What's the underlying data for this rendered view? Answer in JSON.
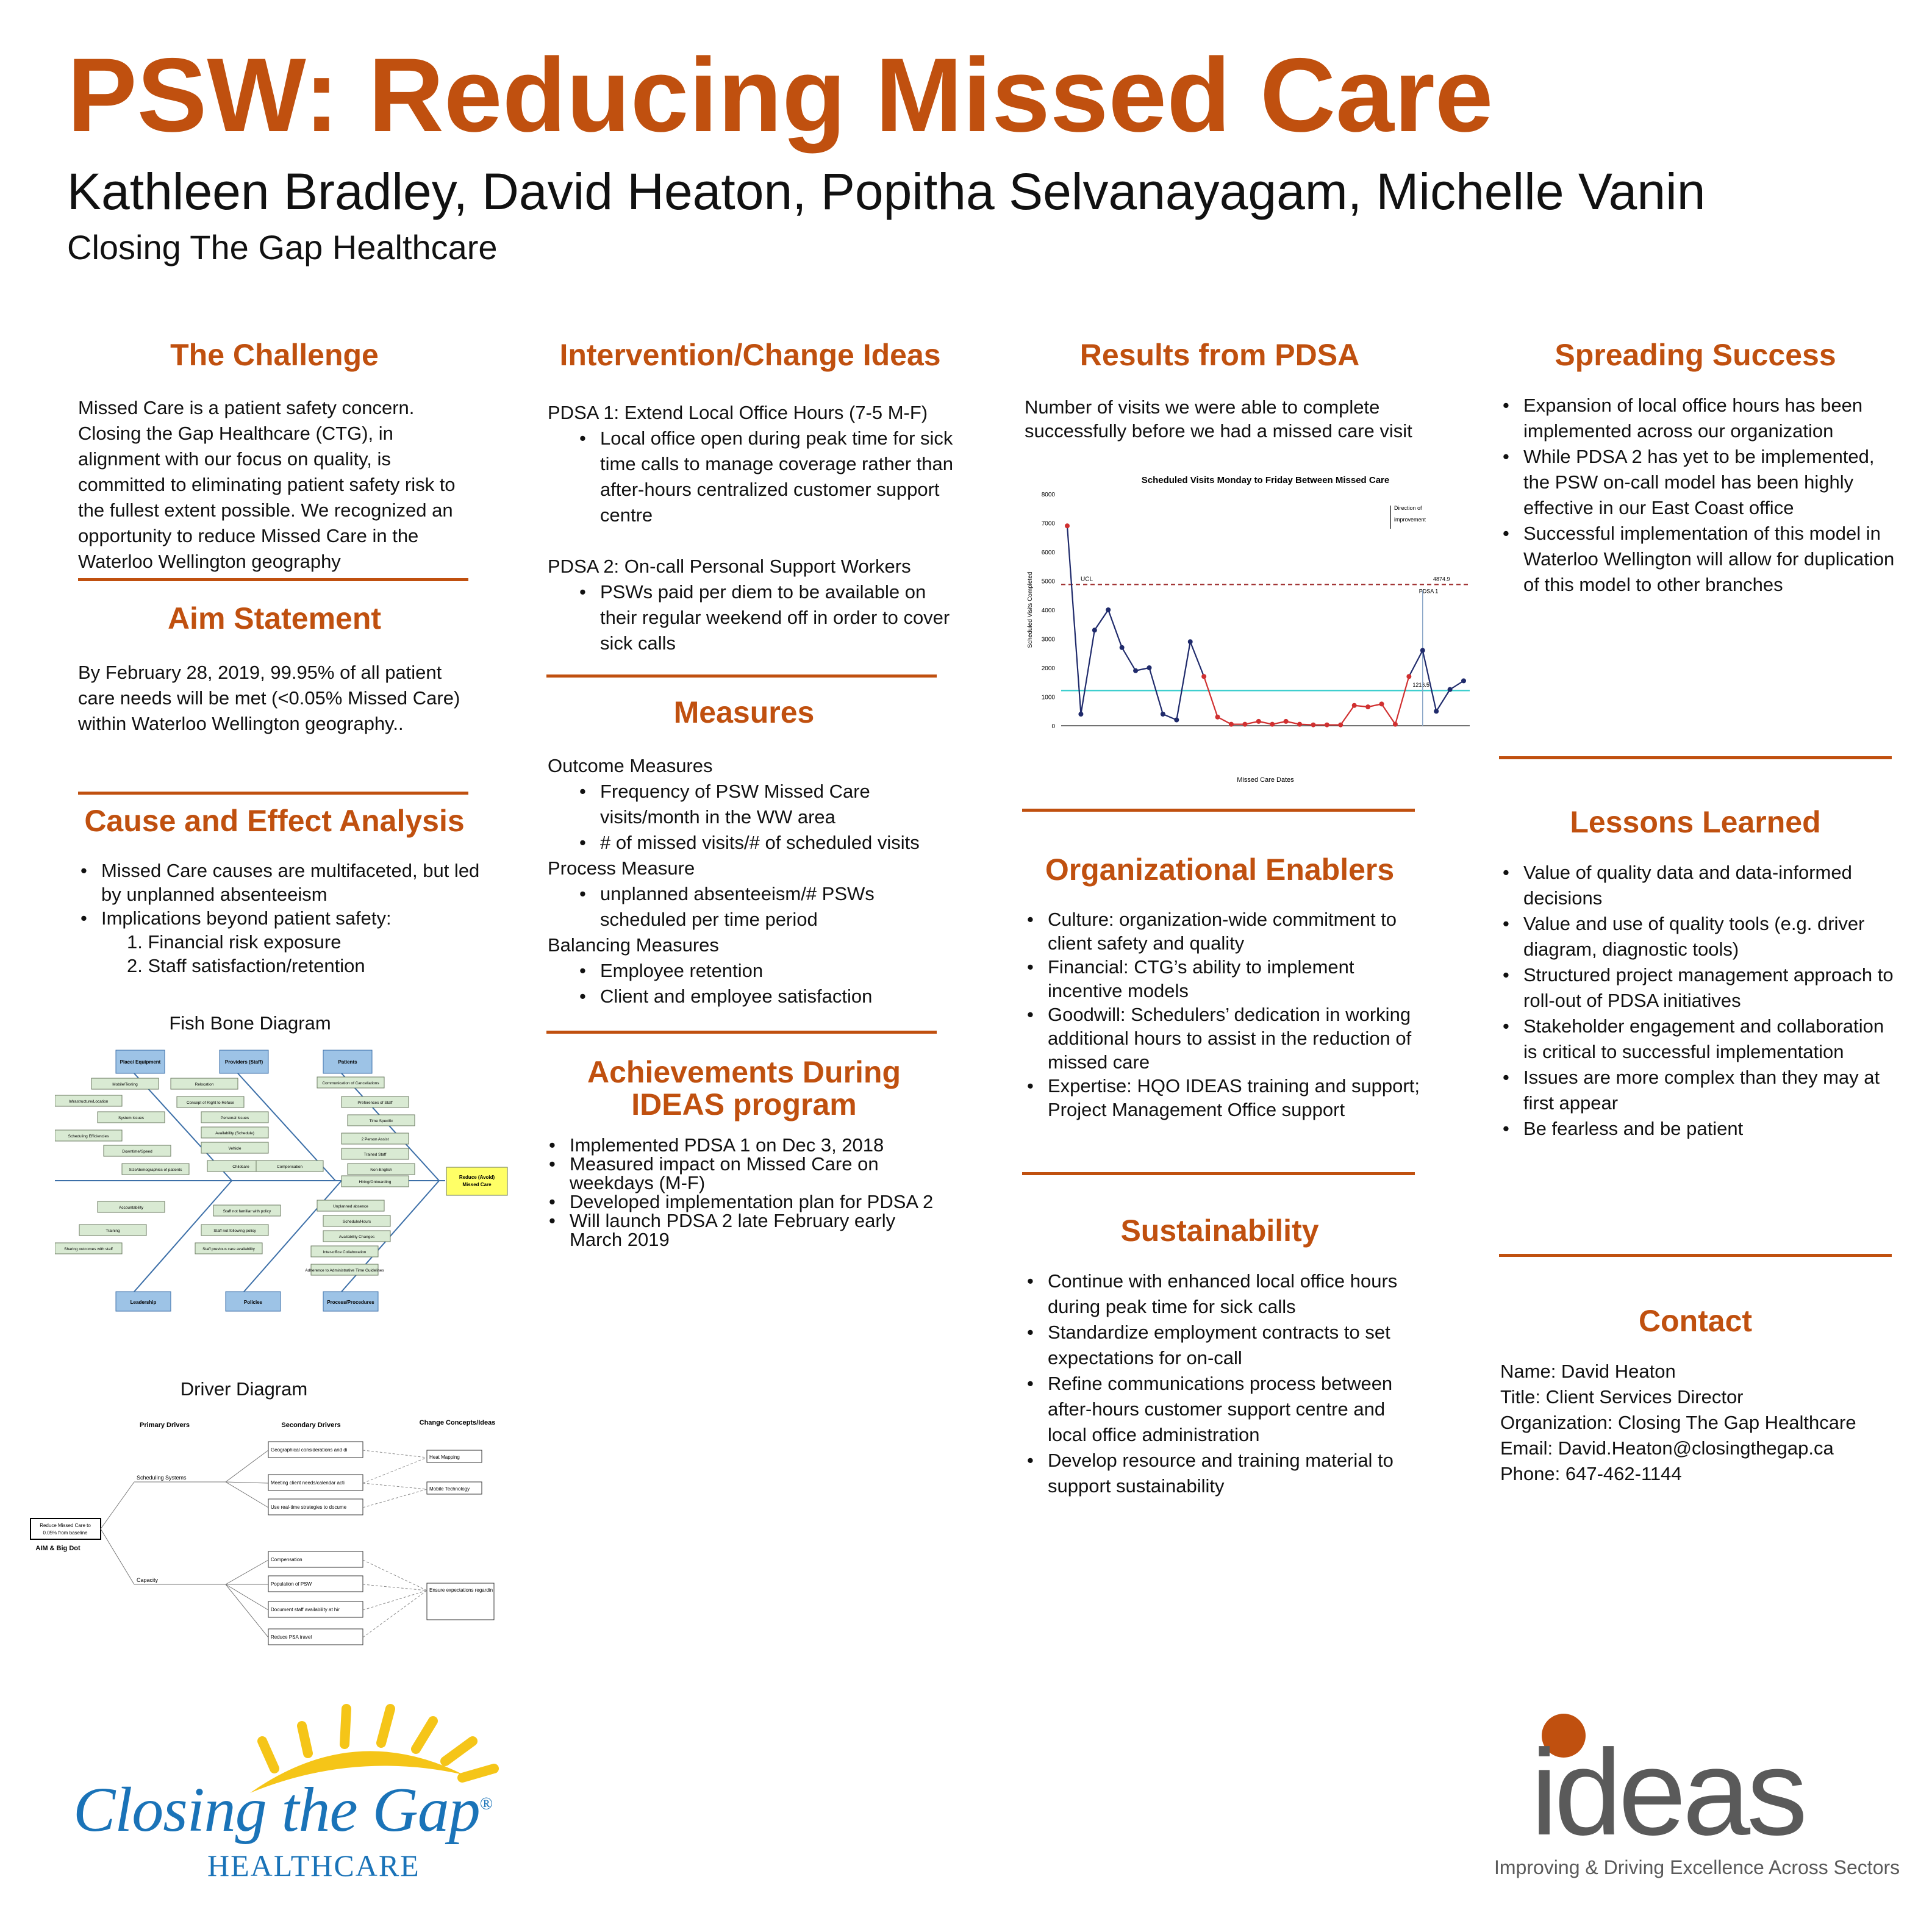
{
  "header": {
    "title": "PSW: Reducing Missed Care",
    "authors": "Kathleen Bradley, David Heaton, Popitha Selvanayagam, Michelle Vanin",
    "organization": "Closing The Gap Healthcare"
  },
  "challenge": {
    "heading": "The Challenge",
    "text": "Missed Care is a patient safety concern. Closing the Gap Healthcare (CTG), in alignment with our focus on quality, is committed to eliminating patient safety risk to the fullest extent possible. We recognized an opportunity to reduce Missed Care in the Waterloo Wellington geography"
  },
  "aim": {
    "heading": "Aim Statement",
    "text": "By February 28, 2019, 99.95% of all patient care needs will be met (<0.05% Missed Care) within Waterloo Wellington geography.."
  },
  "cause_effect": {
    "heading": "Cause and Effect Analysis",
    "bullets": [
      "Missed Care causes are multifaceted, but led by unplanned absenteeism",
      "Implications beyond patient safety:"
    ],
    "numbered": [
      "1.  Financial risk exposure",
      "2.  Staff satisfaction/retention"
    ],
    "fishbone_caption": "Fish Bone Diagram",
    "driver_caption": "Driver Diagram"
  },
  "fishbone": {
    "top_categories": [
      "Place/ Equipment",
      "Providers (Staff)",
      "Patients"
    ],
    "bottom_categories": [
      "Leadership",
      "Policies",
      "Process/Procedures"
    ],
    "effect": "Reduce (Avoid) Missed Care",
    "causes": [
      "Mobile/Texting",
      "Infrastructure/Location",
      "System issues",
      "Scheduling Efficiencies",
      "Downtime/Speed",
      "Size/demographics of patients",
      "Relocation",
      "Concept of Right to Refuse",
      "Personal Issues",
      "Availability (Schedule)",
      "Vehicle",
      "Childcare",
      "Communication of Cancellations",
      "Preferences of Staff",
      "Time Specific",
      "2 Person Assist",
      "Trained Staff",
      "Non-English",
      "Hiring/Onboarding",
      "Compensation",
      "Staff not familiar with policy",
      "Staff not following policy",
      "Staff previous care availability",
      "Accountability",
      "Training",
      "Sharing outcomes with staff",
      "Unplanned absence",
      "Schedule/Hours",
      "Availability Changes",
      "Inter-office Collaboration",
      "Adherence to Administrative Time Guidelines"
    ]
  },
  "driver": {
    "col_primary": "Primary Drivers",
    "col_secondary": "Secondary Drivers",
    "col_change": "Change Concepts/Ideas",
    "aim_box": "Reduce Missed Care to 0.05% from baseline",
    "aim_label": "AIM & Big Dot",
    "primary": [
      "Scheduling Systems",
      "Capacity"
    ],
    "secondary": [
      "Geographical considerations and distance to travel",
      "Meeting client needs/calendar active",
      "Use real-time strategies to document availability",
      "Compensation",
      "Population of PSW",
      "Document staff availability at hiring",
      "Reduce PSA travel"
    ],
    "change": [
      "Heat Mapping",
      "Mobile Technology",
      "Ensure expectations regarding on-call are to meet operational needs. Ex. To travel within catchment area"
    ]
  },
  "intervention": {
    "heading": "Intervention/Change Ideas",
    "pdsa1_title": "PDSA  1: Extend Local Office Hours (7-5 M-F)",
    "pdsa1_bullets": [
      "Local office open during peak time for sick time calls to manage coverage rather than after-hours centralized customer support centre"
    ],
    "pdsa2_title": "PDSA  2:  On-call Personal Support  Workers",
    "pdsa2_bullets": [
      "PSWs paid per diem to be available on their regular weekend off in order to cover sick calls"
    ]
  },
  "measures": {
    "heading": "Measures",
    "outcome_title": "Outcome Measures",
    "outcome": [
      "Frequency of PSW Missed Care visits/month in the WW area",
      "# of missed visits/# of scheduled visits"
    ],
    "process_title": "Process Measure",
    "process": [
      "unplanned absenteeism/# PSWs scheduled per time period"
    ],
    "balancing_title": "Balancing Measures",
    "balancing": [
      "Employee retention",
      "Client and employee satisfaction"
    ]
  },
  "achievements": {
    "heading_line1": "Achievements During",
    "heading_line2": "IDEAS program",
    "bullets": [
      "Implemented PDSA 1 on Dec 3, 2018",
      "Measured impact on Missed Care on weekdays (M-F)",
      "Developed implementation plan for PDSA 2",
      "Will launch PDSA 2 late February early March 2019"
    ]
  },
  "results": {
    "heading": "Results from PDSA",
    "text": "Number of visits we were able to complete successfully before we had a missed care visit"
  },
  "chart_data": {
    "type": "line",
    "title": "Scheduled Visits Monday to Friday Between Missed Care",
    "xlabel": "Missed Care Dates",
    "ylabel": "Scheduled Visits Completed",
    "ylim": [
      0,
      8000
    ],
    "yticks": [
      0,
      1000,
      2000,
      3000,
      4000,
      5000,
      6000,
      7000,
      8000
    ],
    "ucl": 4874.9,
    "ucl_label": "UCL",
    "ucl_value_label": "4874.9",
    "mean": 1216.5,
    "mean_label": "1216.5",
    "pdsa_label": "PDSA 1",
    "direction_label": "Direction of improvement",
    "series": [
      {
        "color": "#1f2a6b",
        "values": [
          6900,
          400,
          3300,
          4000,
          2700,
          1900,
          2000,
          400,
          200,
          2900,
          1700,
          300,
          50,
          50,
          150,
          50,
          150,
          50,
          30,
          30,
          30,
          700,
          650,
          750,
          50,
          1700,
          2600,
          500,
          1250,
          1550
        ]
      }
    ],
    "out_of_control_points": [
      0,
      10,
      11,
      12,
      13,
      14,
      15,
      16,
      17,
      18,
      19,
      20,
      21,
      22,
      23,
      24,
      25
    ]
  },
  "enablers": {
    "heading": "Organizational Enablers",
    "bullets": [
      "Culture: organization-wide commitment to client safety and quality",
      "Financial:  CTG’s ability to implement incentive models",
      "Goodwill:  Schedulers’ dedication in working additional hours to assist in the reduction of missed care",
      "Expertise: HQO IDEAS training and support; Project Management Office support"
    ]
  },
  "sustainability": {
    "heading": "Sustainability",
    "bullets": [
      "Continue with enhanced local office hours during peak time for sick calls",
      "Standardize employment contracts to set expectations for on-call",
      "Refine communications process between after-hours customer support centre and local office administration",
      "Develop resource and training material to support sustainability"
    ]
  },
  "spreading": {
    "heading": "Spreading Success",
    "bullets": [
      "Expansion of local office hours has been implemented across our organization",
      "While PDSA 2 has yet to be implemented, the PSW on-call model has been highly effective in our East Coast office",
      "Successful implementation of this model in Waterloo Wellington will allow for duplication of this model to other branches"
    ]
  },
  "lessons": {
    "heading": "Lessons Learned",
    "bullets": [
      "Value of quality data and data-informed decisions",
      "Value and use of quality tools (e.g. driver diagram, diagnostic tools)",
      "Structured project management approach to roll-out of PDSA initiatives",
      "Stakeholder engagement and collaboration is critical to successful implementation",
      "Issues are more complex than they may at first appear",
      "Be fearless and be patient"
    ]
  },
  "contact": {
    "heading": "Contact",
    "name": "Name: David Heaton",
    "title": "Title: Client Services Director",
    "organization": "Organization: Closing The Gap Healthcare",
    "email": "Email: David.Heaton@closingthegap.ca",
    "phone": "Phone:  647-462-1144"
  },
  "logos": {
    "ctg_line1": "Closing the Gap",
    "ctg_registered": "®",
    "ctg_line2": "HEALTHCARE",
    "ideas_word": "ideas",
    "ideas_tagline": "Improving & Driving Excellence Across Sectors",
    "ctg_blue": "#1a73b8",
    "ctg_sun": "#f5c518",
    "brand_orange": "#c0500f",
    "ideas_grey": "#5a5a5a"
  }
}
